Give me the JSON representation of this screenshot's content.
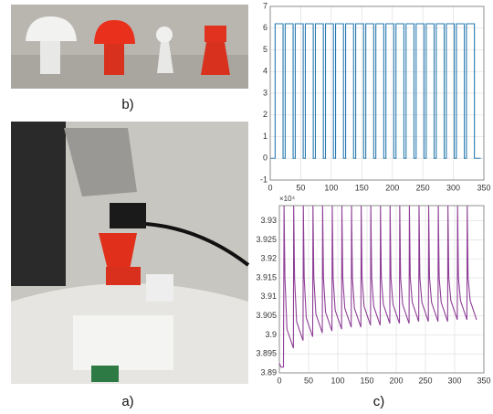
{
  "panel_labels": [
    "b)",
    "a)",
    "c)"
  ],
  "chart_data": [
    {
      "type": "line",
      "grid": true,
      "color": "#2a7ab0",
      "xlim": [
        0,
        350
      ],
      "xticks": [
        0,
        50,
        100,
        150,
        200,
        250,
        300,
        350
      ],
      "ylim": [
        -1,
        7
      ],
      "yticks": [
        -1,
        0,
        1,
        2,
        3,
        4,
        5,
        6,
        7
      ],
      "x": [
        0,
        8,
        8,
        21,
        21,
        24.5,
        24.5,
        37.5,
        37.5,
        41,
        41,
        54,
        54,
        57.5,
        57.5,
        70.5,
        70.5,
        74,
        74,
        87,
        87,
        90.5,
        90.5,
        103.5,
        103.5,
        107,
        107,
        120,
        120,
        123.5,
        123.5,
        136.5,
        136.5,
        140,
        140,
        153,
        153,
        156.5,
        156.5,
        169.5,
        169.5,
        173,
        173,
        186,
        186,
        189.5,
        189.5,
        202.5,
        202.5,
        206,
        206,
        219,
        219,
        222.5,
        222.5,
        235.5,
        235.5,
        239,
        239,
        252,
        252,
        255.5,
        255.5,
        268.5,
        268.5,
        272,
        272,
        285,
        285,
        288.5,
        288.5,
        301.5,
        301.5,
        305,
        305,
        318,
        318,
        321.5,
        321.5,
        334.5,
        334.5,
        345
      ],
      "values": [
        0,
        0,
        6.2,
        6.2,
        0,
        0,
        6.2,
        6.2,
        0,
        0,
        6.2,
        6.2,
        0,
        0,
        6.2,
        6.2,
        0,
        0,
        6.2,
        6.2,
        0,
        0,
        6.2,
        6.2,
        0,
        0,
        6.2,
        6.2,
        0,
        0,
        6.2,
        6.2,
        0,
        0,
        6.2,
        6.2,
        0,
        0,
        6.2,
        6.2,
        0,
        0,
        6.2,
        6.2,
        0,
        0,
        6.2,
        6.2,
        0,
        0,
        6.2,
        6.2,
        0,
        0,
        6.2,
        6.2,
        0,
        0,
        6.2,
        6.2,
        0,
        0,
        6.2,
        6.2,
        0,
        0,
        6.2,
        6.2,
        0,
        0,
        6.2,
        6.2,
        0,
        0,
        6.2,
        6.2,
        0,
        0,
        6.2,
        6.2,
        0,
        0
      ]
    },
    {
      "type": "line",
      "grid": true,
      "color": "#8e3e96",
      "y_multiplier": "×10⁴",
      "xlim": [
        0,
        350
      ],
      "xticks": [
        0,
        50,
        100,
        150,
        200,
        250,
        300,
        350
      ],
      "ylim": [
        3.89,
        3.934
      ],
      "yticks": [
        3.89,
        3.895,
        3.9,
        3.905,
        3.91,
        3.915,
        3.92,
        3.925,
        3.93
      ],
      "x": [
        0,
        3,
        7,
        8,
        9.5,
        13,
        24,
        24.5,
        26,
        29.5,
        40.5,
        41,
        42.5,
        46,
        57,
        57.5,
        59,
        62.5,
        73.5,
        74,
        75.5,
        79,
        90,
        90.5,
        92,
        95.5,
        106.5,
        107,
        108.5,
        112,
        123,
        123.5,
        125,
        128.5,
        139.5,
        140,
        141.5,
        145,
        156,
        156.5,
        158,
        161.5,
        172.5,
        173,
        174.5,
        178,
        189,
        189.5,
        191,
        194.5,
        205.5,
        206,
        207.5,
        211,
        222,
        222.5,
        224,
        227.5,
        238.5,
        239,
        240.5,
        244,
        255,
        255.5,
        257,
        260.5,
        271.5,
        272,
        273.5,
        277,
        288,
        288.5,
        290,
        293.5,
        304.5,
        305,
        306.5,
        310,
        321,
        321.5,
        323,
        326.5,
        337.5
      ],
      "values": [
        3.8925,
        3.8915,
        3.8915,
        3.934,
        3.915,
        3.9015,
        3.8965,
        3.934,
        3.915,
        3.9035,
        3.8985,
        3.934,
        3.915,
        3.9045,
        3.8995,
        3.934,
        3.915,
        3.9055,
        3.9005,
        3.934,
        3.915,
        3.906,
        3.901,
        3.934,
        3.915,
        3.9065,
        3.9015,
        3.934,
        3.915,
        3.907,
        3.902,
        3.934,
        3.915,
        3.907,
        3.902,
        3.934,
        3.915,
        3.9075,
        3.9025,
        3.934,
        3.915,
        3.9075,
        3.9025,
        3.934,
        3.915,
        3.908,
        3.903,
        3.934,
        3.915,
        3.908,
        3.903,
        3.934,
        3.915,
        3.908,
        3.903,
        3.934,
        3.915,
        3.9085,
        3.9035,
        3.934,
        3.915,
        3.9085,
        3.9035,
        3.934,
        3.915,
        3.9085,
        3.9035,
        3.934,
        3.915,
        3.9085,
        3.9035,
        3.934,
        3.915,
        3.909,
        3.904,
        3.934,
        3.915,
        3.909,
        3.904,
        3.934,
        3.915,
        3.909,
        3.904
      ]
    }
  ]
}
